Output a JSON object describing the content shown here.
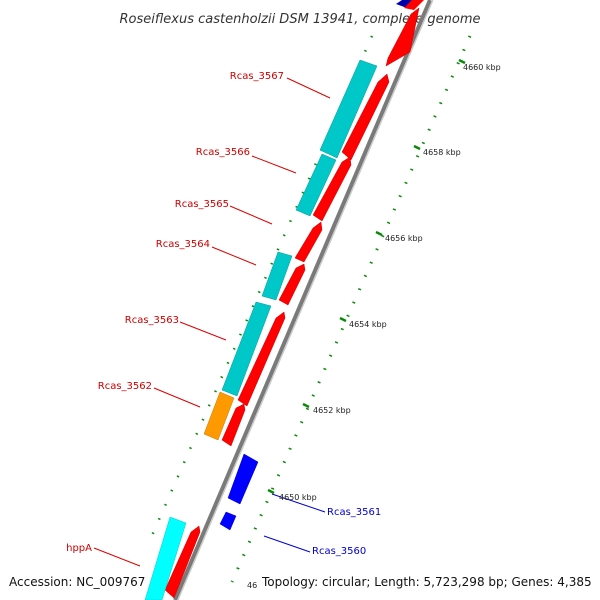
{
  "title": "Roseiflexus castenholzii DSM 13941, complete genome",
  "footer": {
    "accession": "Accession: NC_009767",
    "summary": "Topology: circular; Length: 5,723,298 bp; Genes: 4,385"
  },
  "colors": {
    "forward_cds": "#ff0000",
    "reverse_cds": "#0000ff",
    "cog_teal": "#00c8c8",
    "cog_cyan": "#00ffff",
    "cog_orange": "#ff9900",
    "tick": "#0a8a0a",
    "backbone": "#888888",
    "forward_label": "#cc0000",
    "reverse_label": "#0000cc"
  },
  "scale_labels": [
    "4660 kbp",
    "4658 kbp",
    "4656 kbp",
    "4654 kbp",
    "4652 kbp",
    "4650 kbp",
    "46"
  ],
  "gene_labels": [
    {
      "name": "Rcas_3567",
      "strand": "forward"
    },
    {
      "name": "Rcas_3566",
      "strand": "forward"
    },
    {
      "name": "Rcas_3565",
      "strand": "forward"
    },
    {
      "name": "Rcas_3564",
      "strand": "forward"
    },
    {
      "name": "Rcas_3563",
      "strand": "forward"
    },
    {
      "name": "Rcas_3562",
      "strand": "forward"
    },
    {
      "name": "hppA",
      "strand": "forward"
    },
    {
      "name": "Rcas_3561",
      "strand": "reverse"
    },
    {
      "name": "Rcas_3560",
      "strand": "reverse"
    }
  ]
}
